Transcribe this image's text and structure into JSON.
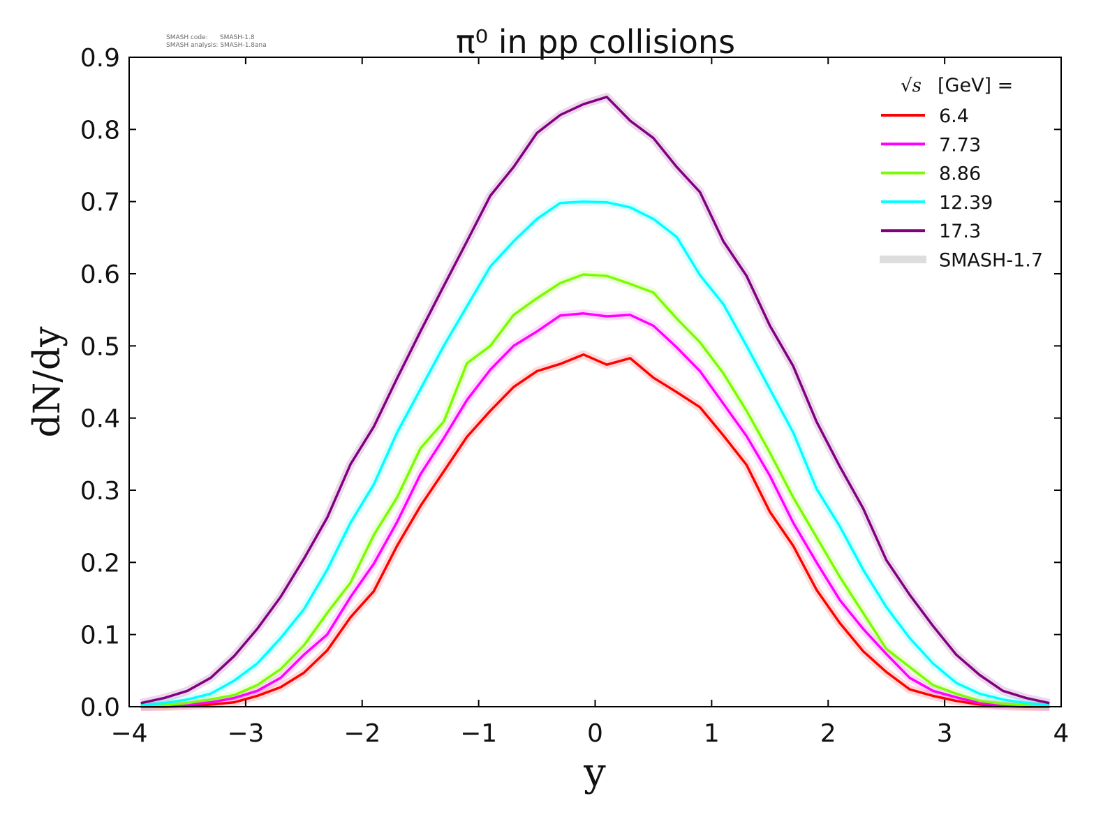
{
  "meta": {
    "code_label": "SMASH code:",
    "code_value": "SMASH-1.8",
    "analysis_label": "SMASH analysis:",
    "analysis_value": "SMASH-1.8ana"
  },
  "chart_data": {
    "type": "line",
    "title": "π⁰ in pp collisions",
    "xlabel": "y",
    "ylabel": "dN/dy",
    "xlim": [
      -4,
      4
    ],
    "ylim": [
      0,
      0.9
    ],
    "xticks": [
      "−4",
      "−3",
      "−2",
      "−1",
      "0",
      "1",
      "2",
      "3",
      "4"
    ],
    "yticks": [
      "0.0",
      "0.1",
      "0.2",
      "0.3",
      "0.4",
      "0.5",
      "0.6",
      "0.7",
      "0.8",
      "0.9"
    ],
    "grid": false,
    "legend_title_sym": "√s",
    "legend_title": "[GeV] =",
    "legend_position": "top-right",
    "reference_label": "SMASH-1.7",
    "reference_color": "#dddddd",
    "x": [
      -3.9,
      -3.7,
      -3.5,
      -3.3,
      -3.1,
      -2.9,
      -2.7,
      -2.5,
      -2.3,
      -2.1,
      -1.9,
      -1.7,
      -1.5,
      -1.3,
      -1.1,
      -0.9,
      -0.7,
      -0.5,
      -0.3,
      -0.1,
      0.1,
      0.3,
      0.5,
      0.7,
      0.9,
      1.1,
      1.3,
      1.5,
      1.7,
      1.9,
      2.1,
      2.3,
      2.5,
      2.7,
      2.9,
      3.1,
      3.3,
      3.5,
      3.7,
      3.9
    ],
    "series": [
      {
        "name": "6.4",
        "color": "#ff0000",
        "values": [
          0,
          0,
          0.001,
          0.003,
          0.006,
          0.015,
          0.027,
          0.047,
          0.078,
          0.124,
          0.16,
          0.223,
          0.278,
          0.326,
          0.374,
          0.41,
          0.443,
          0.465,
          0.475,
          0.488,
          0.474,
          0.483,
          0.456,
          0.436,
          0.415,
          0.376,
          0.335,
          0.27,
          0.223,
          0.162,
          0.116,
          0.077,
          0.048,
          0.024,
          0.015,
          0.008,
          0.003,
          0.001,
          0,
          0
        ]
      },
      {
        "name": "7.73",
        "color": "#ff00ff",
        "values": [
          0,
          0.001,
          0.003,
          0.006,
          0.012,
          0.022,
          0.04,
          0.072,
          0.1,
          0.152,
          0.198,
          0.256,
          0.322,
          0.372,
          0.425,
          0.467,
          0.5,
          0.52,
          0.542,
          0.545,
          0.541,
          0.543,
          0.528,
          0.498,
          0.465,
          0.42,
          0.375,
          0.32,
          0.255,
          0.2,
          0.148,
          0.108,
          0.073,
          0.04,
          0.022,
          0.013,
          0.005,
          0.002,
          0.001,
          0
        ]
      },
      {
        "name": "8.86",
        "color": "#7cfc00",
        "values": [
          0.001,
          0.002,
          0.005,
          0.01,
          0.016,
          0.03,
          0.052,
          0.085,
          0.13,
          0.172,
          0.238,
          0.29,
          0.358,
          0.395,
          0.476,
          0.5,
          0.543,
          0.566,
          0.587,
          0.599,
          0.597,
          0.586,
          0.574,
          0.538,
          0.505,
          0.462,
          0.41,
          0.352,
          0.29,
          0.235,
          0.18,
          0.13,
          0.08,
          0.055,
          0.03,
          0.018,
          0.008,
          0.004,
          0.002,
          0.001
        ]
      },
      {
        "name": "12.39",
        "color": "#00ffff",
        "values": [
          0.002,
          0.005,
          0.01,
          0.018,
          0.036,
          0.06,
          0.095,
          0.135,
          0.19,
          0.255,
          0.308,
          0.38,
          0.44,
          0.5,
          0.555,
          0.61,
          0.645,
          0.676,
          0.698,
          0.7,
          0.699,
          0.692,
          0.676,
          0.651,
          0.598,
          0.558,
          0.5,
          0.44,
          0.38,
          0.302,
          0.25,
          0.19,
          0.138,
          0.095,
          0.06,
          0.033,
          0.018,
          0.01,
          0.005,
          0.002
        ]
      },
      {
        "name": "17.3",
        "color": "#800080",
        "values": [
          0.005,
          0.012,
          0.022,
          0.04,
          0.07,
          0.108,
          0.152,
          0.205,
          0.262,
          0.336,
          0.388,
          0.455,
          0.52,
          0.583,
          0.645,
          0.708,
          0.748,
          0.795,
          0.82,
          0.835,
          0.845,
          0.812,
          0.788,
          0.748,
          0.713,
          0.645,
          0.597,
          0.528,
          0.472,
          0.395,
          0.333,
          0.275,
          0.203,
          0.155,
          0.112,
          0.072,
          0.044,
          0.022,
          0.012,
          0.005
        ]
      }
    ]
  }
}
